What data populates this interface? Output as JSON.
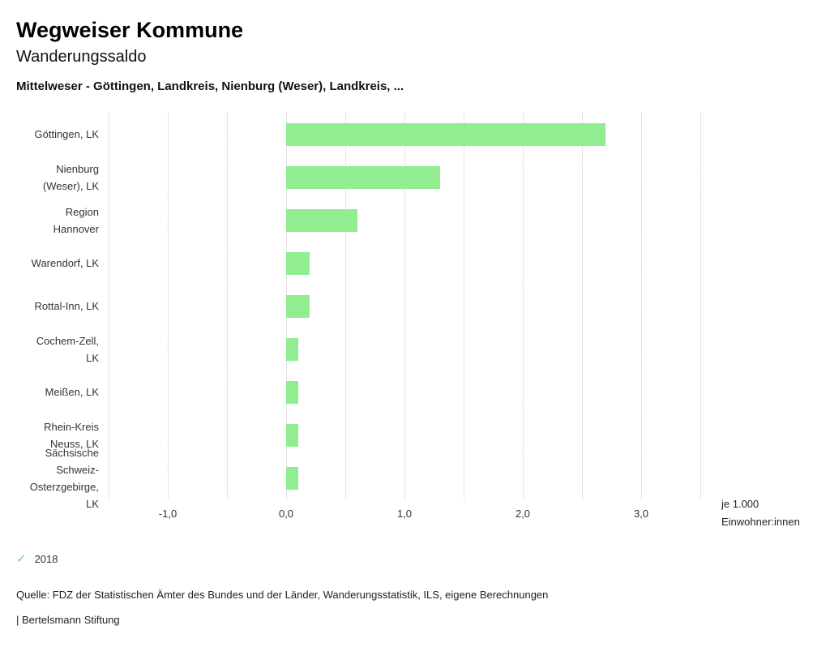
{
  "header": {
    "title": "Wegweiser Kommune",
    "subtitle": "Wanderungssaldo",
    "selection": "Mittelweser - Göttingen, Landkreis, Nienburg (Weser), Landkreis, ..."
  },
  "chart_data": {
    "type": "bar",
    "orientation": "horizontal",
    "title": "Wanderungssaldo",
    "subtitle": "Mittelweser - Göttingen, Landkreis, Nienburg (Weser), Landkreis, ...",
    "xlabel": "je 1.000 Einwohner:innen",
    "ylabel": "",
    "xlim": [
      -1.5,
      3.5
    ],
    "grid": true,
    "grid_step": 0.5,
    "bar_color": "#90ee90",
    "categories": [
      "Göttingen, LK",
      "Nienburg (Weser), LK",
      "Region Hannover",
      "Warendorf, LK",
      "Rottal-Inn, LK",
      "Cochem-Zell, LK",
      "Meißen, LK",
      "Rhein-Kreis Neuss, LK",
      "Sächsische Schweiz-Osterzgebirge, LK"
    ],
    "category_lines": [
      [
        "Göttingen, LK"
      ],
      [
        "Nienburg",
        "(Weser), LK"
      ],
      [
        "Region",
        "Hannover"
      ],
      [
        "Warendorf, LK"
      ],
      [
        "Rottal-Inn, LK"
      ],
      [
        "Cochem-Zell,",
        "LK"
      ],
      [
        "Meißen, LK"
      ],
      [
        "Rhein-Kreis",
        "Neuss, LK"
      ],
      [
        "Sächsische",
        "Schweiz-",
        "Osterzgebirge,",
        "LK"
      ]
    ],
    "series": [
      {
        "name": "2018",
        "values": [
          2.7,
          1.3,
          0.6,
          0.2,
          0.2,
          0.1,
          0.1,
          0.1,
          0.1
        ]
      }
    ],
    "ticks": [
      {
        "value": -1,
        "label": "-1,0"
      },
      {
        "value": 0,
        "label": "0,0"
      },
      {
        "value": 1,
        "label": "1,0"
      },
      {
        "value": 2,
        "label": "2,0"
      },
      {
        "value": 3,
        "label": "3,0"
      }
    ],
    "unit_lines": [
      "je 1.000",
      "Einwohner:innen"
    ],
    "legend_position": "bottom-left"
  },
  "legend": {
    "label": "2018",
    "check_color": "#6fd66f"
  },
  "icons": {
    "check": "✓"
  },
  "footer": {
    "source": "Quelle: FDZ der Statistischen Ämter des Bundes und der Länder, Wanderungsstatistik, ILS, eigene Berechnungen",
    "brand": "| Bertelsmann Stiftung"
  },
  "colors": {
    "bar": "#90ee90",
    "grid": "#c9c9c9",
    "text": "#333333"
  }
}
